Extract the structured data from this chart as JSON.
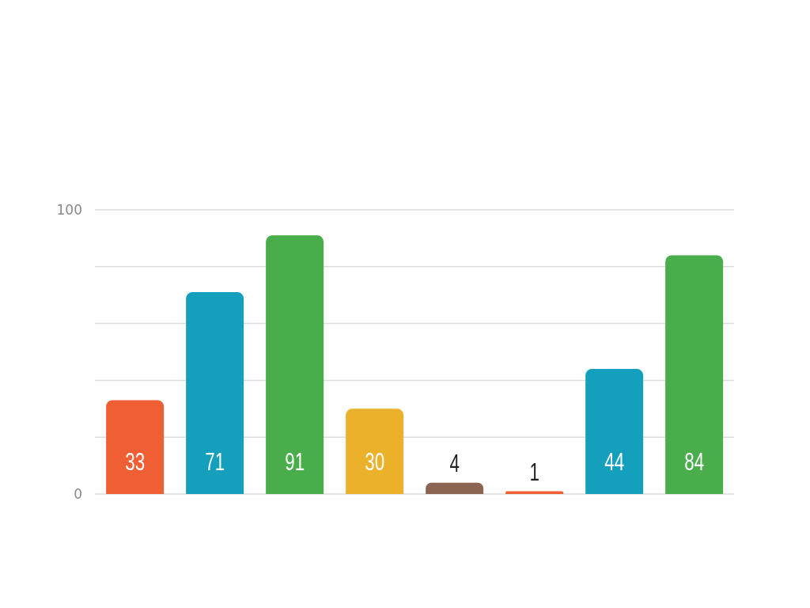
{
  "chart_data": {
    "type": "bar",
    "categories": [
      null,
      null,
      null,
      null,
      null,
      null,
      null,
      null
    ],
    "values": [
      33,
      71,
      91,
      30,
      4,
      1,
      44,
      84
    ],
    "colors": [
      "#f05f33",
      "#149fbc",
      "#48ad4a",
      "#ebb12a",
      "#8b6552",
      "#f05f33",
      "#149fbc",
      "#48ad4a"
    ],
    "ylim": [
      0,
      100
    ],
    "yticks": [
      0,
      {
        "value": 20,
        "label": null
      },
      {
        "value": 40,
        "label": null
      },
      {
        "value": 60,
        "label": null
      },
      {
        "value": 80,
        "label": null
      },
      100
    ],
    "grid": "y",
    "data_labels": true
  }
}
